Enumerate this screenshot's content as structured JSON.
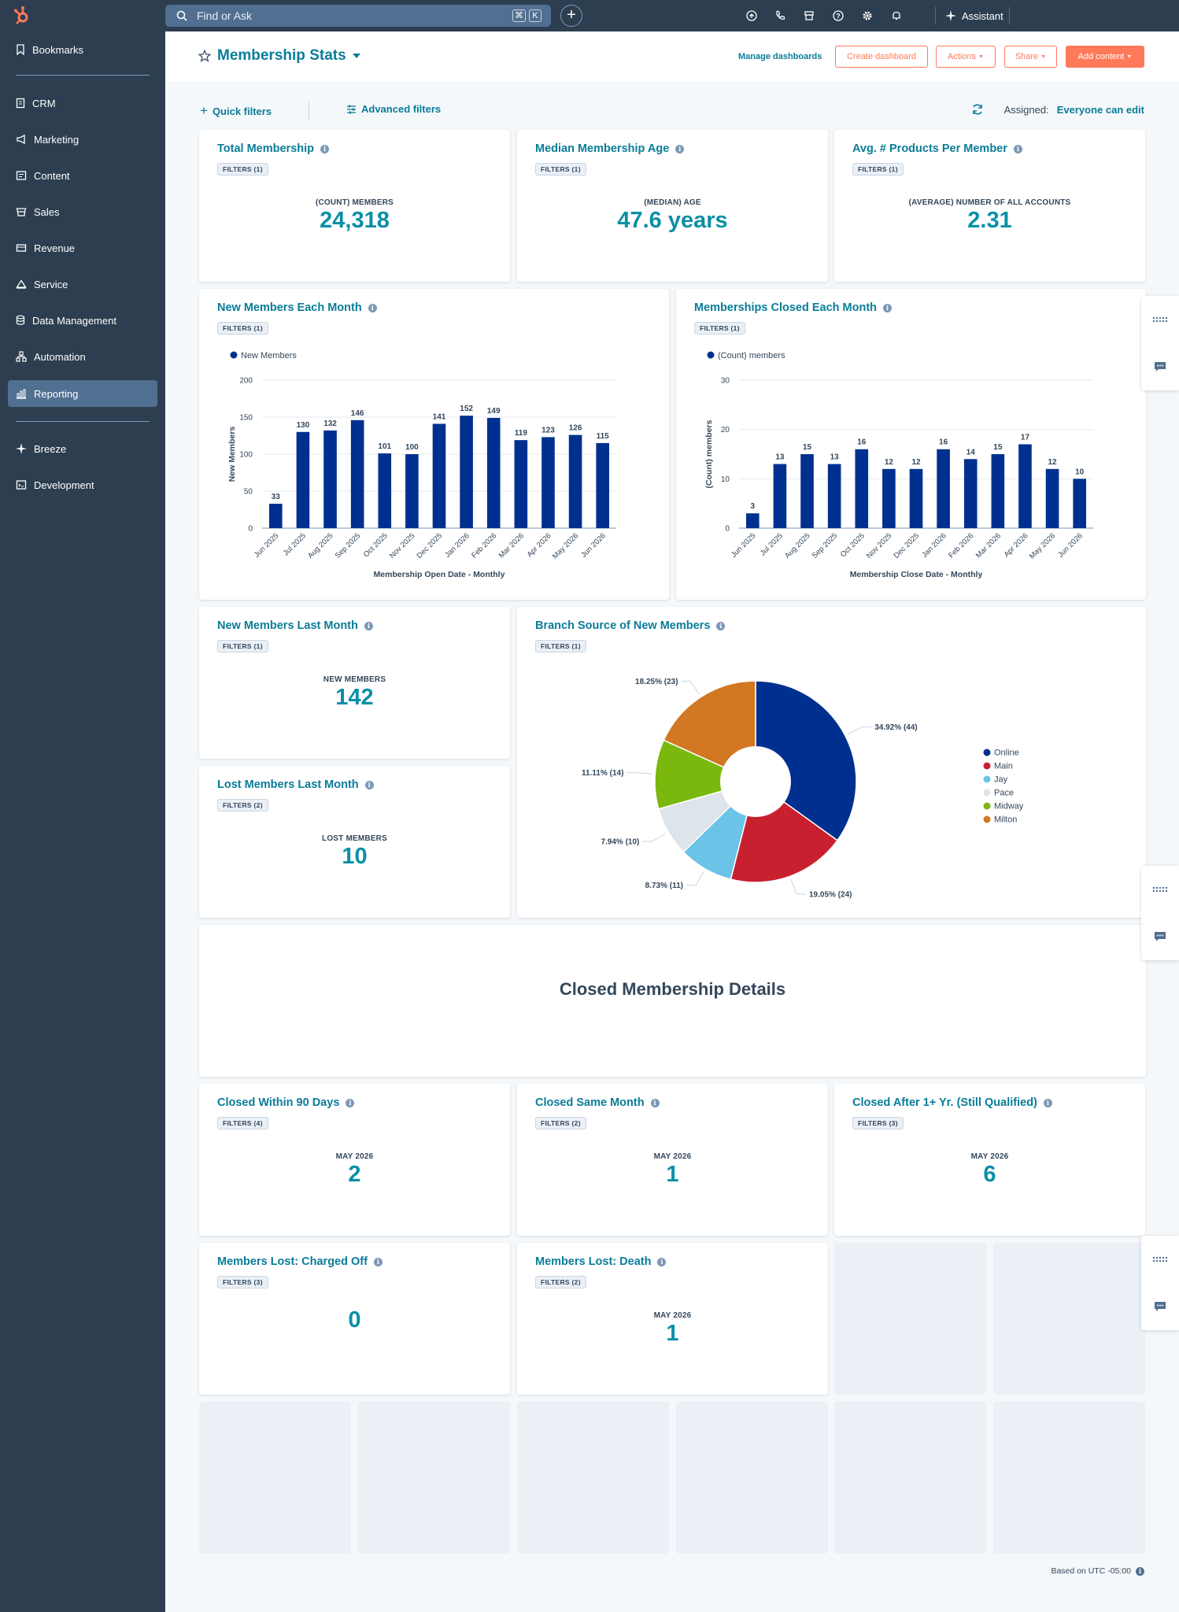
{
  "topbar": {
    "search_placeholder": "Find or Ask",
    "kbd_keys": [
      "⌘",
      "K"
    ],
    "assistant_label": "Assistant"
  },
  "sidebar": {
    "items": [
      {
        "label": "Bookmarks",
        "icon": "bookmark-icon"
      },
      {
        "label": "CRM",
        "icon": "crm-icon"
      },
      {
        "label": "Marketing",
        "icon": "megaphone-icon"
      },
      {
        "label": "Content",
        "icon": "content-icon"
      },
      {
        "label": "Sales",
        "icon": "sales-icon"
      },
      {
        "label": "Revenue",
        "icon": "revenue-icon"
      },
      {
        "label": "Service",
        "icon": "service-icon"
      },
      {
        "label": "Data Management",
        "icon": "database-icon"
      },
      {
        "label": "Automation",
        "icon": "automation-icon"
      },
      {
        "label": "Reporting",
        "icon": "reporting-icon"
      },
      {
        "label": "Breeze",
        "icon": "sparkle-icon"
      },
      {
        "label": "Development",
        "icon": "development-icon"
      }
    ]
  },
  "header": {
    "title": "Membership Stats",
    "manage_label": "Manage dashboards",
    "create_label": "Create dashboard",
    "actions_label": "Actions",
    "share_label": "Share",
    "add_label": "Add content"
  },
  "filterbar": {
    "quick_label": "Quick filters",
    "advanced_label": "Advanced filters",
    "assigned_label": "Assigned:",
    "assigned_value": "Everyone can edit"
  },
  "kpis": {
    "total_membership": {
      "title": "Total Membership",
      "filters": "FILTERS (1)",
      "label": "(COUNT) MEMBERS",
      "value": "24,318"
    },
    "median_age": {
      "title": "Median Membership Age",
      "filters": "FILTERS (1)",
      "label": "(MEDIAN) AGE",
      "value": "47.6 years"
    },
    "avg_products": {
      "title": "Avg. # Products Per Member",
      "filters": "FILTERS (1)",
      "label": "(AVERAGE) NUMBER OF ALL ACCOUNTS",
      "value": "2.31"
    },
    "new_last_month": {
      "title": "New Members Last Month",
      "filters": "FILTERS (1)",
      "label": "NEW MEMBERS",
      "value": "142"
    },
    "lost_last_month": {
      "title": "Lost Members Last Month",
      "filters": "FILTERS (2)",
      "label": "LOST MEMBERS",
      "value": "10"
    },
    "closed_90": {
      "title": "Closed Within 90 Days",
      "filters": "FILTERS (4)",
      "label": "MAY 2026",
      "value": "2"
    },
    "closed_same": {
      "title": "Closed Same Month",
      "filters": "FILTERS (2)",
      "label": "MAY 2026",
      "value": "1"
    },
    "closed_after": {
      "title": "Closed After 1+ Yr. (Still Qualified)",
      "filters": "FILTERS (3)",
      "label": "MAY 2026",
      "value": "6"
    },
    "charged_off": {
      "title": "Members Lost: Charged Off",
      "filters": "FILTERS (3)",
      "value": "0"
    },
    "death": {
      "title": "Members Lost: Death",
      "filters": "FILTERS (2)",
      "label": "MAY 2026",
      "value": "1"
    }
  },
  "section_title": "Closed Membership Details",
  "charts": {
    "new_members": {
      "title": "New Members Each Month",
      "filters": "FILTERS (1)"
    },
    "closed_members": {
      "title": "Memberships Closed Each Month",
      "filters": "FILTERS (1)"
    },
    "branch": {
      "title": "Branch Source of New Members",
      "filters": "FILTERS (1)"
    }
  },
  "chart_data": [
    {
      "type": "bar",
      "categories": [
        "Jun 2025",
        "Jul 2025",
        "Aug 2025",
        "Sep 2025",
        "Oct 2025",
        "Nov 2025",
        "Dec 2025",
        "Jan 2026",
        "Feb 2026",
        "Mar 2026",
        "Apr 2026",
        "May 2026",
        "Jun 2026"
      ],
      "series": [
        {
          "name": "New Members",
          "values": [
            33,
            130,
            132,
            146,
            101,
            100,
            141,
            152,
            149,
            119,
            123,
            126,
            115
          ]
        }
      ],
      "xlabel": "Membership Open Date - Monthly",
      "ylabel": "New Members",
      "ylim": [
        0,
        200
      ],
      "yticks": [
        0,
        50,
        100,
        150,
        200
      ],
      "legend": "top-left",
      "color": "#00308f"
    },
    {
      "type": "bar",
      "categories": [
        "Jun 2025",
        "Jul 2025",
        "Aug 2025",
        "Sep 2025",
        "Oct 2025",
        "Nov 2025",
        "Dec 2025",
        "Jan 2026",
        "Feb 2026",
        "Mar 2026",
        "Apr 2026",
        "May 2026",
        "Jun 2026"
      ],
      "series": [
        {
          "name": "(Count) members",
          "values": [
            3,
            13,
            15,
            13,
            16,
            12,
            12,
            16,
            14,
            15,
            17,
            12,
            10
          ]
        }
      ],
      "xlabel": "Membership Close Date - Monthly",
      "ylabel": "(Count) members",
      "ylim": [
        0,
        30
      ],
      "yticks": [
        0,
        10,
        20,
        30
      ],
      "legend": "top-left",
      "color": "#00308f"
    },
    {
      "type": "pie",
      "donut": true,
      "legend": "right",
      "slices": [
        {
          "name": "Online",
          "value": 44,
          "label": "34.92% (44)",
          "color": "#00308f"
        },
        {
          "name": "Main",
          "value": 24,
          "label": "19.05% (24)",
          "color": "#c8202f"
        },
        {
          "name": "Jay",
          "value": 11,
          "label": "8.73% (11)",
          "color": "#6cc3e8"
        },
        {
          "name": "Pace",
          "value": 10,
          "label": "7.94% (10)",
          "color": "#dde4ea"
        },
        {
          "name": "Midway",
          "value": 14,
          "label": "11.11% (14)",
          "color": "#7ab80e"
        },
        {
          "name": "Milton",
          "value": 23,
          "label": "18.25% (23)",
          "color": "#d27722"
        }
      ]
    }
  ],
  "footer_note": "Based on UTC -05:00"
}
